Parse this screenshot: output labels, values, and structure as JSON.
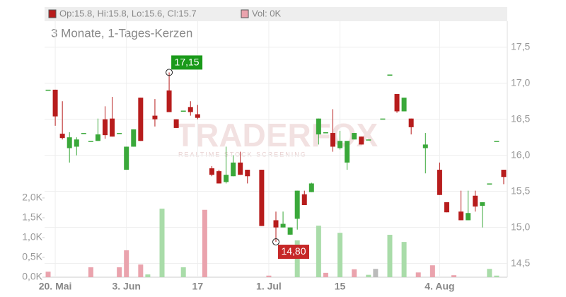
{
  "chart_data": {
    "type": "candlestick",
    "legend": {
      "ohlc": "Op:15.8, Hi:15.8, Lo:15.6, Cl:15.7",
      "volume": "Vol: 0K"
    },
    "subtitle": "3 Monate, 1-Tages-Kerzen",
    "watermark": [
      "TRADERFOX",
      "REALTIME STOCK SCREENING"
    ],
    "categories": [
      null,
      "20. Mai",
      null,
      null,
      null,
      null,
      null,
      null,
      null,
      null,
      null,
      "3. Jun",
      null,
      null,
      null,
      null,
      null,
      null,
      null,
      null,
      null,
      "17",
      null,
      null,
      null,
      null,
      null,
      null,
      null,
      null,
      null,
      "1. Jul",
      null,
      null,
      null,
      null,
      null,
      null,
      null,
      null,
      null,
      "15",
      null,
      null,
      null,
      null,
      null,
      null,
      null,
      null,
      null,
      null,
      null,
      null,
      null,
      "4. Aug",
      null,
      null,
      null,
      null,
      null,
      null,
      null,
      null,
      null
    ],
    "open": [
      16.91,
      16.91,
      16.3,
      16.1,
      16.12,
      16.31,
      16.2,
      16.2,
      16.5,
      16.51,
      16.31,
      15.8,
      16.12,
      16.8,
      null,
      16.55,
      null,
      16.9,
      16.5,
      16.62,
      16.67,
      16.57,
      null,
      15.82,
      15.78,
      15.63,
      15.71,
      15.9,
      15.8,
      null,
      15.8,
      null,
      15.1,
      15.0,
      14.9,
      15.12,
      15.46,
      15.49,
      16.29,
      16.32,
      16.31,
      16.1,
      15.9,
      16.22,
      16.26,
      16.22,
      null,
      16.51,
      17.12,
      16.85,
      16.61,
      16.51,
      null,
      16.1,
      null,
      15.8,
      15.35,
      null,
      15.22,
      15.1,
      15.44,
      15.3,
      15.61,
      16.2,
      15.8
    ],
    "high": [
      16.91,
      16.91,
      16.75,
      16.32,
      16.25,
      16.31,
      16.2,
      16.51,
      16.68,
      16.81,
      16.31,
      16.12,
      16.36,
      16.8,
      null,
      16.78,
      null,
      17.15,
      16.5,
      16.62,
      16.75,
      16.7,
      null,
      15.85,
      15.8,
      16.12,
      16.0,
      16.05,
      15.8,
      null,
      15.8,
      null,
      15.22,
      15.22,
      15.0,
      15.51,
      15.51,
      15.62,
      16.51,
      16.32,
      16.64,
      16.34,
      16.2,
      16.31,
      16.26,
      16.22,
      null,
      16.51,
      17.12,
      16.85,
      16.8,
      16.51,
      null,
      16.31,
      null,
      15.9,
      15.35,
      null,
      15.51,
      15.51,
      15.51,
      15.35,
      15.61,
      16.2,
      15.8
    ],
    "low": [
      16.91,
      16.41,
      16.22,
      15.9,
      16.0,
      16.31,
      16.2,
      16.2,
      16.23,
      16.26,
      16.31,
      15.8,
      16.12,
      16.2,
      null,
      16.4,
      null,
      16.6,
      16.38,
      16.62,
      16.55,
      16.5,
      null,
      15.71,
      15.61,
      15.61,
      15.71,
      15.73,
      15.61,
      null,
      15.02,
      null,
      14.8,
      15.0,
      14.9,
      14.97,
      15.31,
      15.49,
      16.15,
      16.32,
      16.05,
      16.08,
      15.8,
      16.22,
      16.15,
      16.22,
      null,
      16.51,
      17.12,
      16.59,
      16.61,
      16.29,
      null,
      15.75,
      null,
      15.45,
      15.21,
      null,
      15.1,
      15.1,
      15.22,
      15.0,
      15.61,
      16.2,
      15.6
    ],
    "close": [
      16.91,
      16.54,
      16.24,
      16.25,
      16.22,
      16.31,
      16.2,
      16.29,
      16.28,
      16.26,
      16.31,
      16.12,
      16.36,
      16.2,
      null,
      16.5,
      null,
      16.6,
      16.38,
      16.62,
      16.6,
      16.52,
      null,
      15.73,
      15.61,
      15.73,
      15.9,
      15.73,
      15.71,
      null,
      15.02,
      null,
      15.0,
      15.05,
      15.0,
      15.51,
      15.31,
      15.61,
      16.51,
      16.32,
      16.12,
      16.2,
      16.2,
      16.31,
      16.15,
      16.22,
      null,
      16.51,
      17.12,
      16.61,
      16.8,
      16.39,
      null,
      16.15,
      null,
      15.45,
      15.21,
      null,
      15.1,
      15.2,
      15.29,
      15.35,
      15.61,
      16.2,
      15.7
    ],
    "up_color": "#3aa83a",
    "down_color": "#b71c1c",
    "volume": {
      "axis": "y2",
      "values": [
        140,
        null,
        null,
        null,
        null,
        null,
        250,
        null,
        null,
        null,
        250,
        680,
        null,
        320,
        70,
        null,
        1730,
        null,
        null,
        250,
        null,
        null,
        1700,
        null,
        null,
        null,
        null,
        null,
        null,
        null,
        null,
        40,
        null,
        null,
        null,
        930,
        null,
        null,
        1300,
        110,
        null,
        1120,
        null,
        200,
        null,
        60,
        210,
        null,
        1070,
        null,
        890,
        null,
        120,
        null,
        300,
        null,
        null,
        50,
        null,
        null,
        null,
        null,
        210,
        40,
        0
      ],
      "colors": [
        "#eaa3ad",
        null,
        null,
        null,
        null,
        null,
        "#eaa3ad",
        null,
        null,
        null,
        "#eaa3ad",
        "#eaa3ad",
        null,
        "#eaa3ad",
        "#a9dca9",
        null,
        "#a9dca9",
        null,
        null,
        "#a9dca9",
        null,
        null,
        "#eaa3ad",
        null,
        null,
        null,
        null,
        null,
        null,
        null,
        null,
        "#eaa3ad",
        null,
        null,
        null,
        "#a9dca9",
        null,
        null,
        "#a9dca9",
        "#eaa3ad",
        null,
        "#a9dca9",
        null,
        "#eaa3ad",
        null,
        "#a9dca9",
        "#bbbbbb",
        null,
        "#a9dca9",
        null,
        "#a9dca9",
        null,
        "#eaa3ad",
        null,
        "#eaa3ad",
        null,
        null,
        "#eaa3ad",
        null,
        null,
        null,
        null,
        "#a9dca9",
        "#a9dca9",
        "#a9dca9"
      ]
    },
    "ylim": [
      14.31,
      17.86
    ],
    "yticks": [
      {
        "value": 14.5,
        "label": "14,5"
      },
      {
        "value": 15,
        "label": "15,0"
      },
      {
        "value": 15.5,
        "label": "15,5"
      },
      {
        "value": 16,
        "label": "16,0"
      },
      {
        "value": 16.5,
        "label": "16,5"
      },
      {
        "value": 17,
        "label": "17,0"
      },
      {
        "value": 17.5,
        "label": "17,5"
      }
    ],
    "y2lim": [
      0,
      6460
    ],
    "y2ticks": [
      {
        "value": 0,
        "label": "0,0K"
      },
      {
        "value": 500,
        "label": "0,5K"
      },
      {
        "value": 1000,
        "label": "1,0K"
      },
      {
        "value": 1500,
        "label": "1,5K"
      },
      {
        "value": 2000,
        "label": "2,0K"
      }
    ],
    "annotations": [
      {
        "at": 17,
        "value": 17.15,
        "label": "17,15",
        "color": "#1a9a1a"
      },
      {
        "at": 32,
        "value": 14.8,
        "label": "14,80",
        "color": "#c62828"
      }
    ],
    "grid": true
  }
}
